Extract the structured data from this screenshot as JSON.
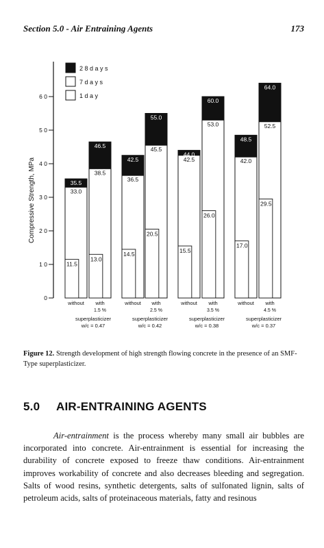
{
  "header": {
    "section": "Section 5.0 - Air Entraining Agents",
    "page_number": "173"
  },
  "chart_data": {
    "type": "bar",
    "title": "",
    "ylabel": "Compressive Strength, MPa",
    "ylim": [
      0,
      70
    ],
    "yticks": [
      0,
      10,
      20,
      30,
      40,
      50,
      60
    ],
    "ytick_labels": [
      "0",
      "1 0",
      "2 0",
      "3 0",
      "4 0",
      "5 0",
      "6 0"
    ],
    "legend": {
      "placement": "top-left",
      "entries": [
        "2 8  d a y s",
        "7  d a y s",
        "1  d a y"
      ]
    },
    "groups": [
      {
        "dosage": "",
        "sp_label": "superplasticizer",
        "wc": "w/c = 0.47"
      },
      {
        "dosage": "1.5 %",
        "sp_label": "superplasticizer",
        "wc": "w/c = 0.42"
      },
      {
        "dosage": "2.5 %",
        "sp_label": "superplasticizer",
        "wc": "w/c = 0.38"
      },
      {
        "dosage": "3.5 %",
        "sp_label": "superplasticizer",
        "wc": "w/c = 0.37"
      },
      {
        "dosage": "4.5 %",
        "sp_label": "",
        "wc": ""
      }
    ],
    "category_labels": [
      "without",
      "with",
      "without",
      "with",
      "without",
      "with",
      "without",
      "with"
    ],
    "bars": [
      {
        "day1": 11.5,
        "day7": 33.0,
        "day28": 35.5,
        "labels": [
          "11.5",
          "33.0",
          "35.5"
        ]
      },
      {
        "day1": 13.0,
        "day7": 38.5,
        "day28": 46.5,
        "labels": [
          "13.0",
          "38.5",
          "46.5"
        ]
      },
      {
        "day1": 14.5,
        "day7": 36.5,
        "day28": 42.5,
        "labels": [
          "14.5",
          "36.5",
          "42.5"
        ]
      },
      {
        "day1": 20.5,
        "day7": 45.5,
        "day28": 55.0,
        "labels": [
          "20.5",
          "45.5",
          "55.0"
        ]
      },
      {
        "day1": 15.5,
        "day7": 42.5,
        "day28": 44.0,
        "labels": [
          "15.5",
          "42.5",
          "44.0"
        ]
      },
      {
        "day1": 26.0,
        "day7": 53.0,
        "day28": 60.0,
        "labels": [
          "26.0",
          "53.0",
          "60.0"
        ]
      },
      {
        "day1": 17.0,
        "day7": 42.0,
        "day28": 48.5,
        "labels": [
          "17.0",
          "42.0",
          "48.5"
        ]
      },
      {
        "day1": 29.5,
        "day7": 52.5,
        "day28": 64.0,
        "labels": [
          "29.5",
          "52.5",
          "64.0"
        ]
      }
    ],
    "colors": {
      "day28": "#111111",
      "day7": "#ffffff",
      "day1": "#ffffff"
    }
  },
  "caption": {
    "label": "Figure 12.",
    "text": " Strength development of high strength flowing concrete in the presence of an SMF-Type superplasticizer."
  },
  "section": {
    "number": "5.0",
    "title": "AIR-ENTRAINING AGENTS"
  },
  "paragraph": {
    "term": "Air-entrainment",
    "text": " is the process whereby many small air bubbles are incorporated into concrete. Air-entrainment is essential for increasing the durability of concrete exposed to freeze thaw conditions. Air-entrainment improves workability of concrete and also decreases bleeding and segregation. Salts of wood resins, synthetic detergents, salts of sulfonated lignin, salts of petroleum acids, salts of proteinaceous materials, fatty and resinous"
  }
}
